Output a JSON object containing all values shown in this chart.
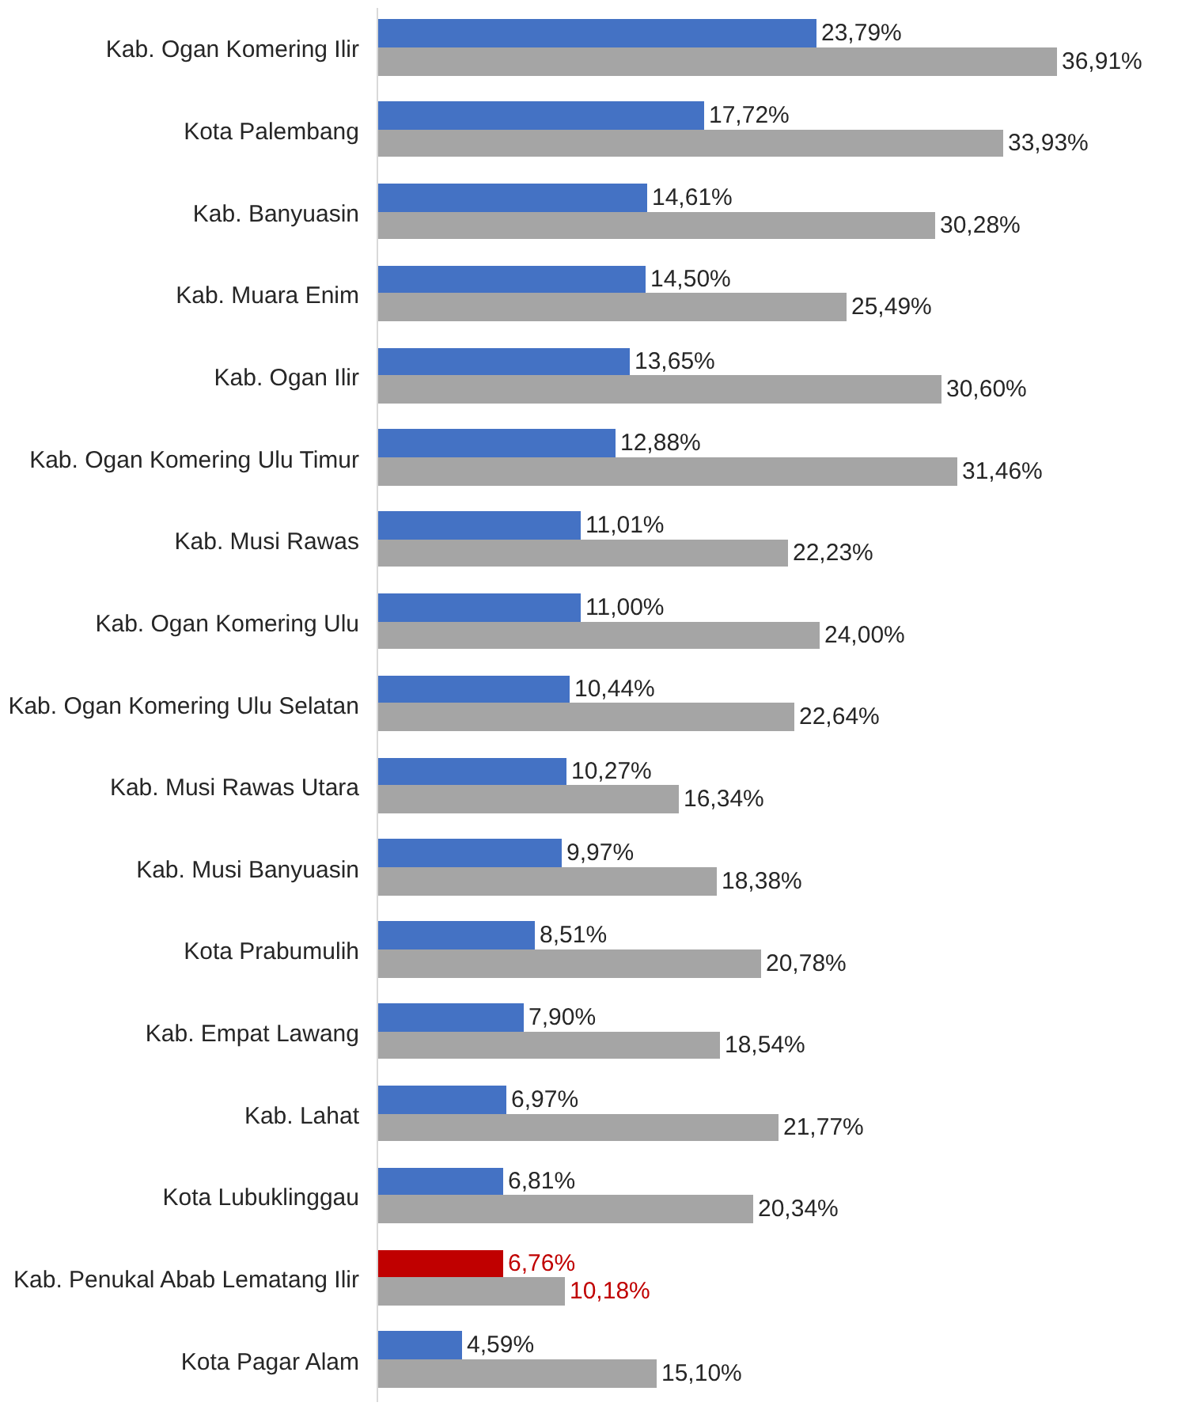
{
  "chart_data": {
    "type": "bar",
    "orientation": "horizontal",
    "categories": [
      "Kab. Ogan Komering Ilir",
      "Kota Palembang",
      "Kab. Banyuasin",
      "Kab. Muara Enim",
      "Kab. Ogan Ilir",
      "Kab. Ogan Komering Ulu Timur",
      "Kab. Musi Rawas",
      "Kab. Ogan Komering Ulu",
      "Kab. Ogan Komering Ulu Selatan",
      "Kab. Musi Rawas Utara",
      "Kab. Musi Banyuasin",
      "Kota Prabumulih",
      "Kab. Empat Lawang",
      "Kab. Lahat",
      "Kota Lubuklinggau",
      "Kab. Penukal Abab Lematang Ilir",
      "Kota Pagar Alam"
    ],
    "series": [
      {
        "color": "#4472c4",
        "colors": [
          "#4472c4",
          "#4472c4",
          "#4472c4",
          "#4472c4",
          "#4472c4",
          "#4472c4",
          "#4472c4",
          "#4472c4",
          "#4472c4",
          "#4472c4",
          "#4472c4",
          "#4472c4",
          "#4472c4",
          "#4472c4",
          "#4472c4",
          "#c00000",
          "#4472c4"
        ],
        "values": [
          23.79,
          17.72,
          14.61,
          14.5,
          13.65,
          12.88,
          11.01,
          11.0,
          10.44,
          10.27,
          9.97,
          8.51,
          7.9,
          6.97,
          6.81,
          6.76,
          4.59
        ],
        "value_labels": [
          "23,79%",
          "17,72%",
          "14,61%",
          "14,50%",
          "13,65%",
          "12,88%",
          "11,01%",
          "11,00%",
          "10,44%",
          "10,27%",
          "9,97%",
          "8,51%",
          "7,90%",
          "6,97%",
          "6,81%",
          "6,76%",
          "4,59%"
        ]
      },
      {
        "color": "#a5a5a5",
        "values": [
          36.91,
          33.93,
          30.28,
          25.49,
          30.6,
          31.46,
          22.23,
          24.0,
          22.64,
          16.34,
          18.38,
          20.78,
          18.54,
          21.77,
          20.34,
          10.18,
          15.1
        ],
        "value_labels": [
          "36,91%",
          "33,93%",
          "30,28%",
          "25,49%",
          "30,60%",
          "31,46%",
          "22,23%",
          "24,00%",
          "22,64%",
          "16,34%",
          "18,38%",
          "20,78%",
          "18,54%",
          "21,77%",
          "20,34%",
          "10,18%",
          "15,10%"
        ]
      }
    ],
    "data_labels": false
  }
}
